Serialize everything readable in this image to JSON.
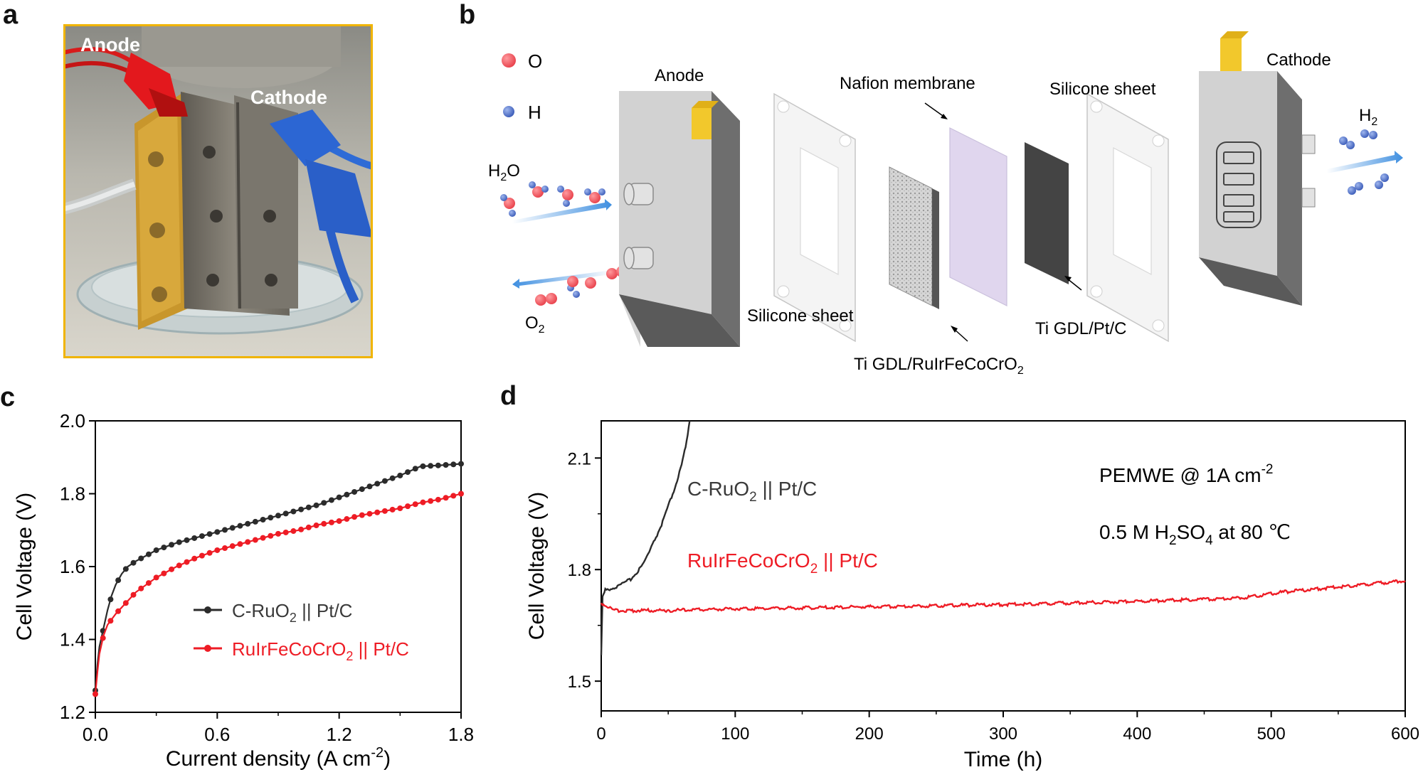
{
  "panels": {
    "a": "a",
    "b": "b",
    "c": "c",
    "d": "d"
  },
  "photo": {
    "anode_label": "Anode",
    "cathode_label": "Cathode"
  },
  "schematic": {
    "legend_o": "O",
    "legend_h": "H",
    "anode": "Anode",
    "cathode": "Cathode",
    "nafion": "Nafion membrane",
    "silicone_top": "Silicone sheet",
    "silicone_bottom": "Silicone sheet",
    "ti_gdl_ptc": "Ti GDL/Pt/C",
    "ti_gdl_catalyst_main": "Ti GDL/RuIrFeCoCrO",
    "ti_gdl_catalyst_sub": "2",
    "h2o_main": "H",
    "h2o_sub": "2",
    "h2o_tail": "O",
    "o2_main": "O",
    "o2_sub": "2",
    "h2_main": "H",
    "h2_sub": "2"
  },
  "colors": {
    "black_series": "#2b2b2b",
    "red_series": "#ee1c25",
    "photo_frame": "#f0b400",
    "oxygen": "#f0636b",
    "hydrogen": "#5a78c8",
    "arrow_blue": "#3f8fe0"
  },
  "chart_data": [
    {
      "id": "c",
      "type": "line",
      "xlabel": "Current density (A cm",
      "xlabel_sup": "-2",
      "xlabel_tail": ")",
      "ylabel": "Cell Voltage (V)",
      "xlim": [
        0,
        1.8
      ],
      "ylim": [
        1.2,
        2.0
      ],
      "xticks": [
        0.0,
        0.6,
        1.2,
        1.8
      ],
      "xtick_labels": [
        "0.0",
        "0.6",
        "1.2",
        "1.8"
      ],
      "yticks": [
        1.2,
        1.4,
        1.6,
        1.8,
        2.0
      ],
      "ytick_labels": [
        "1.2",
        "1.4",
        "1.6",
        "1.8",
        "2.0"
      ],
      "series": [
        {
          "name_main": "C-RuO",
          "name_sub": "2",
          "name_tail": " || Pt/C",
          "color": "#2b2b2b",
          "markers": true,
          "points": [
            [
              0.0,
              1.26
            ],
            [
              0.01,
              1.33
            ],
            [
              0.02,
              1.38
            ],
            [
              0.04,
              1.43
            ],
            [
              0.06,
              1.48
            ],
            [
              0.08,
              1.52
            ],
            [
              0.1,
              1.55
            ],
            [
              0.13,
              1.58
            ],
            [
              0.16,
              1.6
            ],
            [
              0.2,
              1.615
            ],
            [
              0.25,
              1.63
            ],
            [
              0.3,
              1.645
            ],
            [
              0.4,
              1.665
            ],
            [
              0.5,
              1.68
            ],
            [
              0.6,
              1.695
            ],
            [
              0.7,
              1.71
            ],
            [
              0.8,
              1.725
            ],
            [
              0.9,
              1.74
            ],
            [
              1.0,
              1.755
            ],
            [
              1.1,
              1.77
            ],
            [
              1.2,
              1.79
            ],
            [
              1.3,
              1.81
            ],
            [
              1.4,
              1.83
            ],
            [
              1.5,
              1.85
            ],
            [
              1.6,
              1.875
            ],
            [
              1.7,
              1.878
            ],
            [
              1.8,
              1.882
            ]
          ]
        },
        {
          "name_main": "RuIrFeCoCrO",
          "name_sub": "2",
          "name_tail": " || Pt/C",
          "color": "#ee1c25",
          "markers": true,
          "points": [
            [
              0.0,
              1.25
            ],
            [
              0.01,
              1.31
            ],
            [
              0.02,
              1.36
            ],
            [
              0.04,
              1.41
            ],
            [
              0.06,
              1.44
            ],
            [
              0.1,
              1.47
            ],
            [
              0.15,
              1.5
            ],
            [
              0.2,
              1.53
            ],
            [
              0.3,
              1.57
            ],
            [
              0.4,
              1.6
            ],
            [
              0.5,
              1.625
            ],
            [
              0.6,
              1.645
            ],
            [
              0.7,
              1.66
            ],
            [
              0.8,
              1.675
            ],
            [
              0.9,
              1.69
            ],
            [
              1.0,
              1.7
            ],
            [
              1.1,
              1.715
            ],
            [
              1.2,
              1.725
            ],
            [
              1.3,
              1.74
            ],
            [
              1.4,
              1.75
            ],
            [
              1.5,
              1.76
            ],
            [
              1.6,
              1.775
            ],
            [
              1.7,
              1.785
            ],
            [
              1.8,
              1.8
            ]
          ]
        }
      ]
    },
    {
      "id": "d",
      "type": "line",
      "xlabel": "Time (h)",
      "ylabel": "Cell Voltage (V)",
      "xlim": [
        0,
        600
      ],
      "ylim": [
        1.42,
        2.2
      ],
      "xticks": [
        0,
        100,
        200,
        300,
        400,
        500,
        600
      ],
      "xtick_labels": [
        "0",
        "100",
        "200",
        "300",
        "400",
        "500",
        "600"
      ],
      "yticks": [
        1.5,
        1.8,
        2.1
      ],
      "ytick_labels": [
        "1.5",
        "1.8",
        "2.1"
      ],
      "annotation_line1_main": "PEMWE @ 1A cm",
      "annotation_line1_sup": "-2",
      "annotation_line2_main": "0.5 M H",
      "annotation_line2_sub": "2",
      "annotation_line2_mid": "SO",
      "annotation_line2_sub2": "4",
      "annotation_line2_tail": " at 80 ℃",
      "series": [
        {
          "name_main": "C-RuO",
          "name_sub": "2",
          "name_tail": " || Pt/C",
          "color": "#2b2b2b",
          "points": [
            [
              0,
              1.57
            ],
            [
              1,
              1.73
            ],
            [
              3,
              1.745
            ],
            [
              8,
              1.75
            ],
            [
              13,
              1.755
            ],
            [
              18,
              1.765
            ],
            [
              22,
              1.775
            ],
            [
              26,
              1.79
            ],
            [
              30,
              1.81
            ],
            [
              35,
              1.84
            ],
            [
              40,
              1.88
            ],
            [
              45,
              1.92
            ],
            [
              50,
              1.97
            ],
            [
              55,
              2.02
            ],
            [
              60,
              2.08
            ],
            [
              63,
              2.13
            ],
            [
              66,
              2.2
            ]
          ]
        },
        {
          "name_main": "RuIrFeCoCrO",
          "name_sub": "2",
          "name_tail": " || Pt/C",
          "color": "#ee1c25",
          "points": [
            [
              0,
              1.71
            ],
            [
              5,
              1.7
            ],
            [
              10,
              1.69
            ],
            [
              20,
              1.69
            ],
            [
              50,
              1.69
            ],
            [
              100,
              1.695
            ],
            [
              150,
              1.697
            ],
            [
              200,
              1.7
            ],
            [
              250,
              1.703
            ],
            [
              300,
              1.706
            ],
            [
              350,
              1.71
            ],
            [
              400,
              1.715
            ],
            [
              450,
              1.72
            ],
            [
              480,
              1.725
            ],
            [
              510,
              1.74
            ],
            [
              540,
              1.75
            ],
            [
              570,
              1.76
            ],
            [
              600,
              1.77
            ]
          ]
        }
      ]
    }
  ]
}
